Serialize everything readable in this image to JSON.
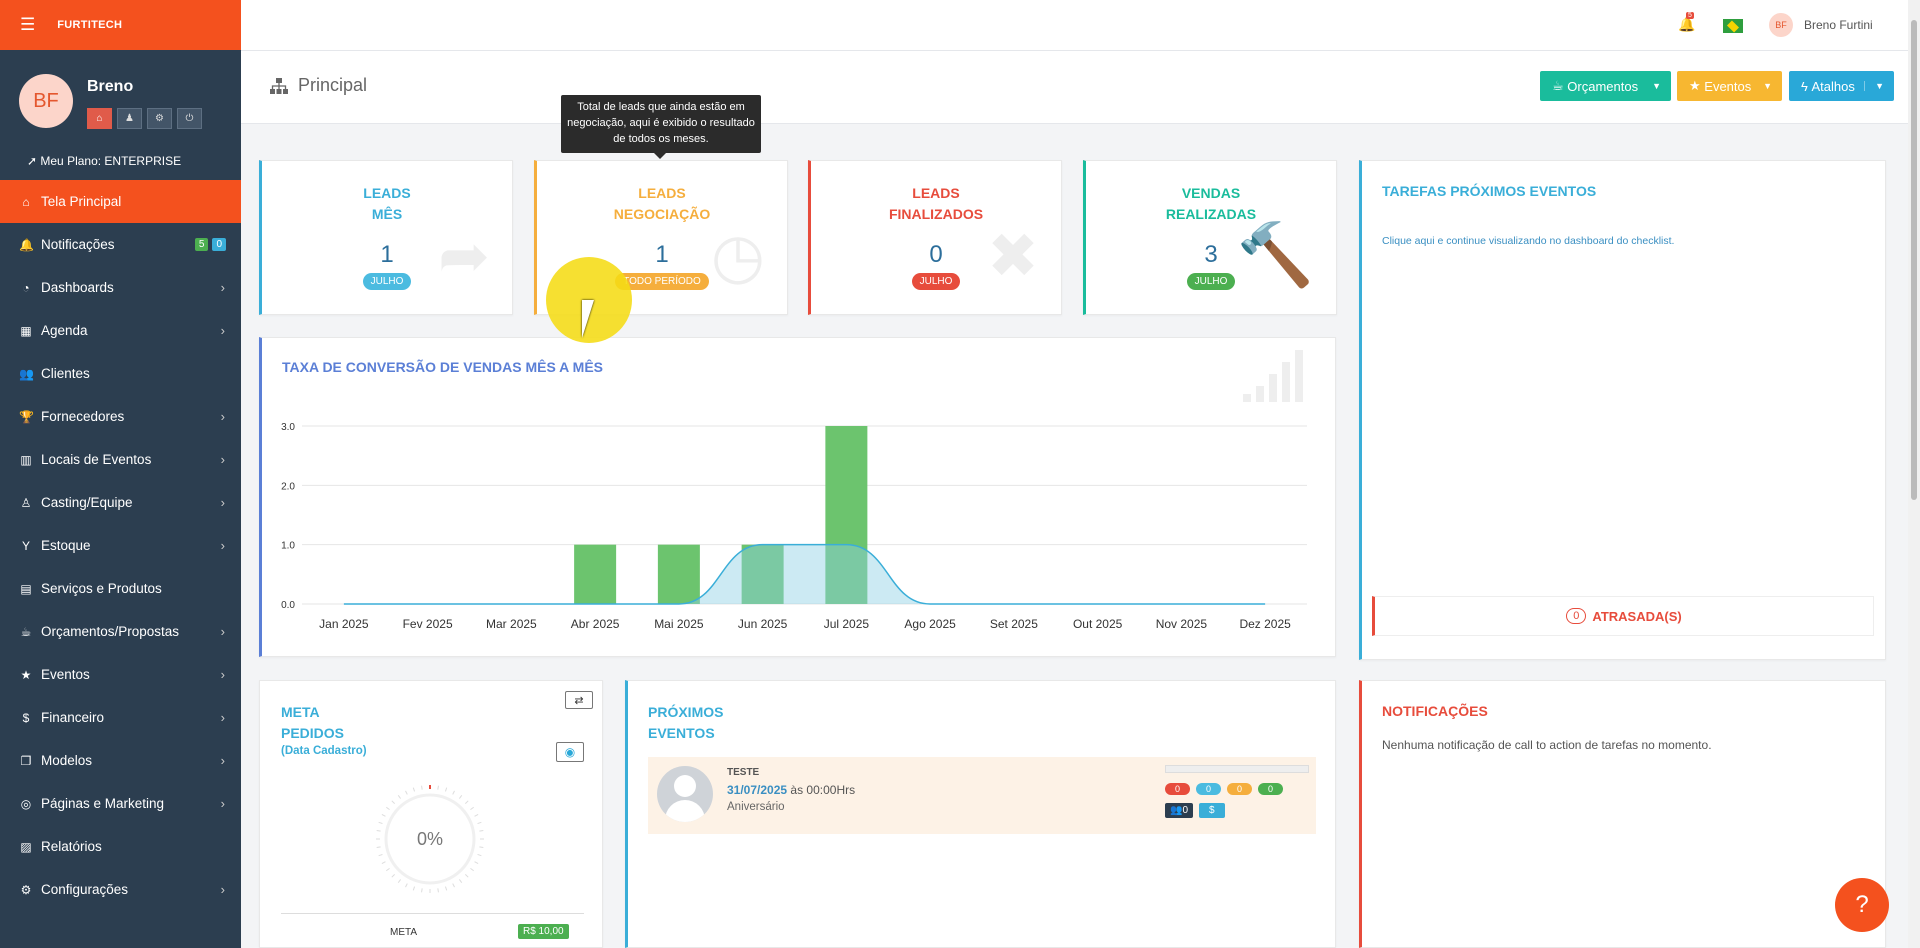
{
  "sidebar": {
    "brand": "FURTITECH",
    "avatar_initials": "BF",
    "user_name": "Breno",
    "plan": "Meu Plano: ENTERPRISE",
    "items": [
      {
        "label": "Tela Principal",
        "icon": "home-icon",
        "glyph": "⌂",
        "active": true,
        "chevron": false
      },
      {
        "label": "Notificações",
        "icon": "bell-icon",
        "glyph": "🔔",
        "badges": [
          "5",
          "0"
        ],
        "chevron": false
      },
      {
        "label": "Dashboards",
        "icon": "dashboard-icon",
        "glyph": "◔",
        "chevron": true
      },
      {
        "label": "Agenda",
        "icon": "calendar-icon",
        "glyph": "▦",
        "chevron": true
      },
      {
        "label": "Clientes",
        "icon": "users-icon",
        "glyph": "👥",
        "chevron": false
      },
      {
        "label": "Fornecedores",
        "icon": "trophy-icon",
        "glyph": "🏆",
        "chevron": true
      },
      {
        "label": "Locais de Eventos",
        "icon": "building-icon",
        "glyph": "▥",
        "chevron": true
      },
      {
        "label": "Casting/Equipe",
        "icon": "person-icon",
        "glyph": "♙",
        "chevron": true
      },
      {
        "label": "Estoque",
        "icon": "glass-icon",
        "glyph": "Y",
        "chevron": true
      },
      {
        "label": "Serviços e Produtos",
        "icon": "box-icon",
        "glyph": "▤",
        "chevron": false
      },
      {
        "label": "Orçamentos/Propostas",
        "icon": "coffee-icon",
        "glyph": "☕",
        "chevron": true
      },
      {
        "label": "Eventos",
        "icon": "star-icon",
        "glyph": "★",
        "chevron": true
      },
      {
        "label": "Financeiro",
        "icon": "dollar-icon",
        "glyph": "$",
        "chevron": true
      },
      {
        "label": "Modelos",
        "icon": "copy-icon",
        "glyph": "❐",
        "chevron": true
      },
      {
        "label": "Páginas e Marketing",
        "icon": "bullseye-icon",
        "glyph": "◎",
        "chevron": true
      },
      {
        "label": "Relatórios",
        "icon": "chart-icon",
        "glyph": "▨",
        "chevron": false
      },
      {
        "label": "Configurações",
        "icon": "gear-icon",
        "glyph": "⚙",
        "chevron": true
      }
    ]
  },
  "topbar": {
    "bell_count": "5",
    "user_initials": "BF",
    "user_name": "Breno Furtini"
  },
  "header": {
    "title": "Principal",
    "buttons": [
      {
        "label": "Orçamentos",
        "color": "#1abc9c"
      },
      {
        "label": "Eventos",
        "color": "#f7b731"
      },
      {
        "label": "Atalhos",
        "color": "#29a8d8"
      }
    ]
  },
  "tooltip": "Total de leads que ainda estão em negociação, aqui é exibido o resultado de todos os meses.",
  "stats": [
    {
      "line1": "LEADS",
      "line2": "MÊS",
      "value": "1",
      "badge": "JULHO",
      "color": "#3aaed8",
      "badge_color": "#4bbbe0",
      "icon": "share-icon"
    },
    {
      "line1": "LEADS",
      "line2": "NEGOCIAÇÃO",
      "value": "1",
      "badge": "TODO PERÍODO",
      "color": "#f5ae3d",
      "badge_color": "#f5ae3d",
      "icon": "clock-icon"
    },
    {
      "line1": "LEADS",
      "line2": "FINALIZADOS",
      "value": "0",
      "badge": "JULHO",
      "color": "#e74c3c",
      "badge_color": "#e74c3c",
      "icon": "times-circle-icon"
    },
    {
      "line1": "VENDAS",
      "line2": "REALIZADAS",
      "value": "3",
      "badge": "JULHO",
      "color": "#1abc9c",
      "badge_color": "#4caf50",
      "icon": "gavel-icon"
    }
  ],
  "tasks": {
    "title": "TAREFAS PRÓXIMOS EVENTOS",
    "link": "Clique aqui e continue visualizando no dashboard do checklist.",
    "overdue_count": "0",
    "overdue_label": "ATRASADA(S)"
  },
  "chart_data": {
    "type": "bar",
    "title": "TAXA DE CONVERSÃO DE VENDAS MÊS A MÊS",
    "categories": [
      "Jan 2025",
      "Fev 2025",
      "Mar 2025",
      "Abr 2025",
      "Mai 2025",
      "Jun 2025",
      "Jul 2025",
      "Ago 2025",
      "Set 2025",
      "Out 2025",
      "Nov 2025",
      "Dez 2025"
    ],
    "series": [
      {
        "type": "bar",
        "color": "#6cc46e",
        "values": [
          0,
          0,
          0,
          1,
          1,
          1,
          3,
          0,
          0,
          0,
          0,
          0
        ]
      },
      {
        "type": "area",
        "color": "#8fd0e4",
        "values": [
          0,
          0,
          0,
          0,
          0,
          1,
          1,
          0,
          0,
          0,
          0,
          0
        ]
      }
    ],
    "yticks": [
      "0.0",
      "1.0",
      "2.0",
      "3.0"
    ],
    "ylim": [
      0,
      3
    ],
    "grid": true
  },
  "meta": {
    "line1": "META",
    "line2": "PEDIDOS",
    "sub": "(Data Cadastro)",
    "percent": "0%",
    "meta_label": "META",
    "meta_value": "R$ 10,00"
  },
  "events": {
    "line1": "PRÓXIMOS",
    "line2": "EVENTOS",
    "item": {
      "name": "TESTE",
      "date": "31/07/2025",
      "time": "às 00:00Hrs",
      "type": "Aniversário",
      "counts": [
        "0",
        "0",
        "0",
        "0"
      ],
      "guests": "0",
      "money": "$"
    }
  },
  "notifications": {
    "title": "NOTIFICAÇÕES",
    "text": "Nenhuma notificação de call to action de tarefas no momento."
  }
}
